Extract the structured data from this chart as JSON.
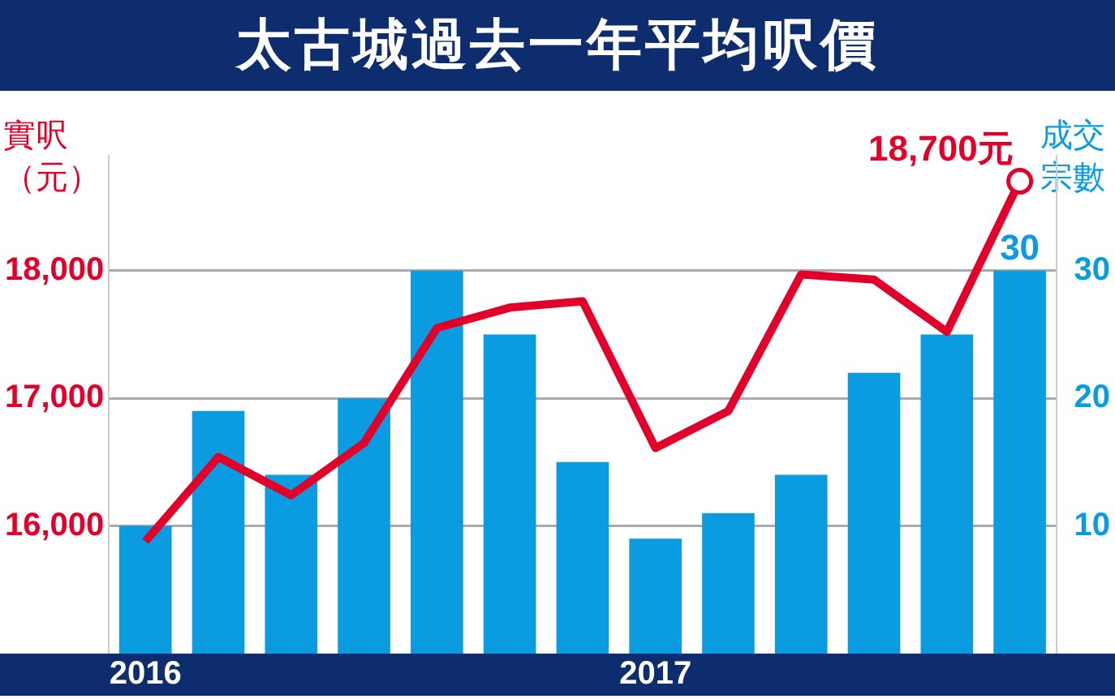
{
  "chart_data": {
    "type": "bar",
    "title": "太古城過去一年平均呎價",
    "ylabel": "實呎（元）",
    "y2label": "成交宗數",
    "categories": [
      "2016",
      null,
      null,
      null,
      null,
      null,
      null,
      "2017",
      null,
      null,
      null,
      null,
      null
    ],
    "series": [
      {
        "axis": "y2",
        "color": "#0a9be0",
        "values": [
          10,
          19,
          14,
          20,
          30,
          25,
          15,
          9,
          11,
          14,
          22,
          25,
          30
        ],
        "value_labels": [
          null,
          null,
          null,
          null,
          null,
          null,
          null,
          null,
          null,
          null,
          null,
          null,
          "30"
        ]
      },
      {
        "type": "line",
        "axis": "y",
        "color": "#e2002a",
        "values": [
          15880,
          16540,
          16240,
          16650,
          17550,
          17710,
          17760,
          16610,
          16900,
          17970,
          17930,
          17520,
          18700
        ]
      }
    ],
    "annotations": [
      "18,700元"
    ],
    "ylim": [
      15000,
      18900
    ],
    "yticks": [
      {
        "value": 16000,
        "label": "16,000"
      },
      {
        "value": 17000,
        "label": "17,000"
      },
      {
        "value": 18000,
        "label": "18,000"
      }
    ],
    "y2lim": [
      0,
      39
    ],
    "y2ticks": [
      10,
      20,
      30
    ],
    "grid": "y",
    "legend": false,
    "marker": "none"
  }
}
